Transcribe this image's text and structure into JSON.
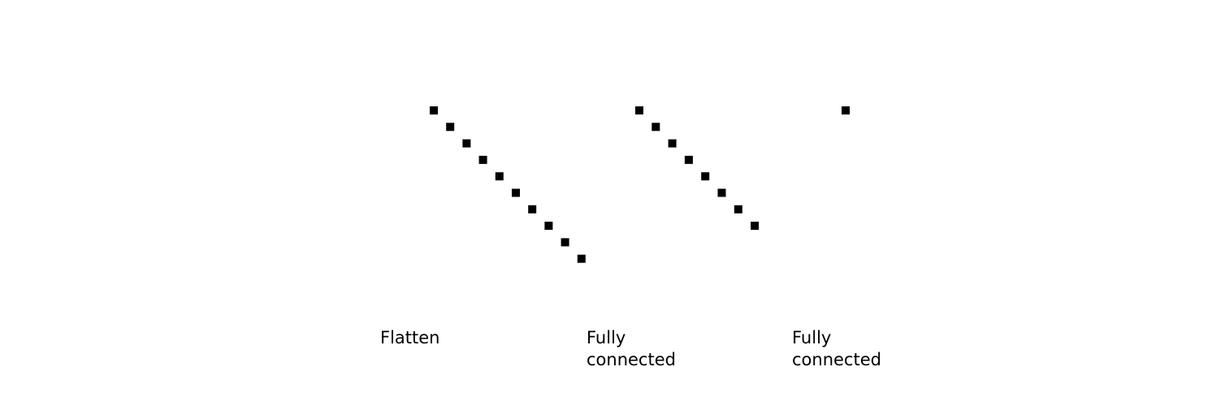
{
  "colors": {
    "background": "#ffffff",
    "node": "#000000",
    "text": "#000000"
  },
  "layers": [
    {
      "name": "flatten",
      "node_count": 10,
      "label_lines": [
        "Flatten"
      ]
    },
    {
      "name": "fully-connected-1",
      "node_count": 8,
      "label_lines": [
        "Fully",
        "connected"
      ]
    },
    {
      "name": "fully-connected-2",
      "node_count": 1,
      "label_lines": [
        "Fully",
        "connected"
      ]
    }
  ]
}
